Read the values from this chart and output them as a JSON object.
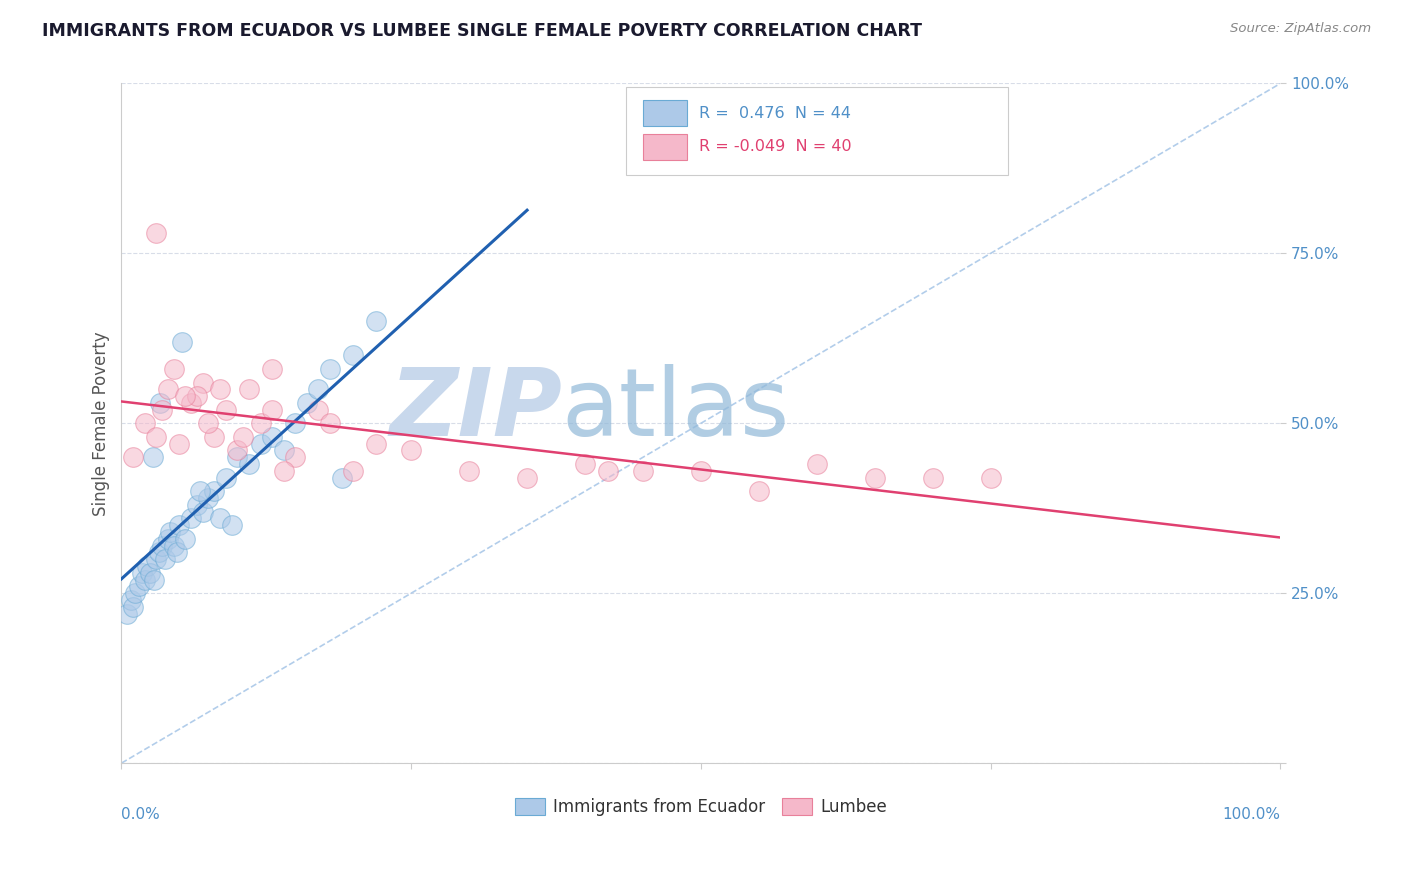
{
  "title": "IMMIGRANTS FROM ECUADOR VS LUMBEE SINGLE FEMALE POVERTY CORRELATION CHART",
  "source": "Source: ZipAtlas.com",
  "ylabel": "Single Female Poverty",
  "legend_labels": [
    "Immigrants from Ecuador",
    "Lumbee"
  ],
  "r_ecuador": 0.476,
  "n_ecuador": 44,
  "r_lumbee": -0.049,
  "n_lumbee": 40,
  "ecuador_color": "#adc9e8",
  "ecuador_edge": "#6aaad4",
  "lumbee_color": "#f5b8ca",
  "lumbee_edge": "#e8809a",
  "trendline_ecuador": "#2060b0",
  "trendline_lumbee": "#e04070",
  "diag_color": "#aac8e8",
  "background_color": "#ffffff",
  "grid_color": "#d8dde8",
  "watermark_zip_color": "#c8d8ec",
  "watermark_atlas_color": "#90b8d8",
  "ytick_color": "#5090c8",
  "xtick_color": "#5090c8",
  "marker_size": 200,
  "alpha": 0.55,
  "ecuador_x": [
    0.5,
    0.8,
    1.0,
    1.2,
    1.5,
    1.8,
    2.0,
    2.2,
    2.5,
    2.8,
    3.0,
    3.2,
    3.5,
    3.8,
    4.0,
    4.2,
    4.5,
    4.8,
    5.0,
    5.5,
    6.0,
    6.5,
    7.0,
    7.5,
    8.0,
    8.5,
    9.0,
    10.0,
    11.0,
    12.0,
    13.0,
    14.0,
    15.0,
    16.0,
    17.0,
    18.0,
    20.0,
    22.0,
    5.2,
    3.3,
    2.7,
    6.8,
    9.5,
    19.0
  ],
  "ecuador_y": [
    22.0,
    24.0,
    23.0,
    25.0,
    26.0,
    28.0,
    27.0,
    29.0,
    28.0,
    27.0,
    30.0,
    31.0,
    32.0,
    30.0,
    33.0,
    34.0,
    32.0,
    31.0,
    35.0,
    33.0,
    36.0,
    38.0,
    37.0,
    39.0,
    40.0,
    36.0,
    42.0,
    45.0,
    44.0,
    47.0,
    48.0,
    46.0,
    50.0,
    53.0,
    55.0,
    58.0,
    60.0,
    65.0,
    62.0,
    53.0,
    45.0,
    40.0,
    35.0,
    42.0
  ],
  "lumbee_x": [
    1.0,
    2.0,
    3.0,
    3.5,
    4.0,
    5.0,
    6.0,
    7.0,
    8.0,
    9.0,
    10.0,
    11.0,
    12.0,
    13.0,
    15.0,
    17.0,
    20.0,
    22.0,
    40.0,
    45.0,
    55.0,
    65.0,
    75.0,
    3.0,
    4.5,
    6.5,
    8.5,
    50.0,
    13.0,
    5.5,
    7.5,
    10.5,
    14.0,
    18.0,
    25.0,
    30.0,
    35.0,
    42.0,
    60.0,
    70.0
  ],
  "lumbee_y": [
    45.0,
    50.0,
    48.0,
    52.0,
    55.0,
    47.0,
    53.0,
    56.0,
    48.0,
    52.0,
    46.0,
    55.0,
    50.0,
    58.0,
    45.0,
    52.0,
    43.0,
    47.0,
    44.0,
    43.0,
    40.0,
    42.0,
    42.0,
    78.0,
    58.0,
    54.0,
    55.0,
    43.0,
    52.0,
    54.0,
    50.0,
    48.0,
    43.0,
    50.0,
    46.0,
    43.0,
    42.0,
    43.0,
    44.0,
    42.0
  ]
}
